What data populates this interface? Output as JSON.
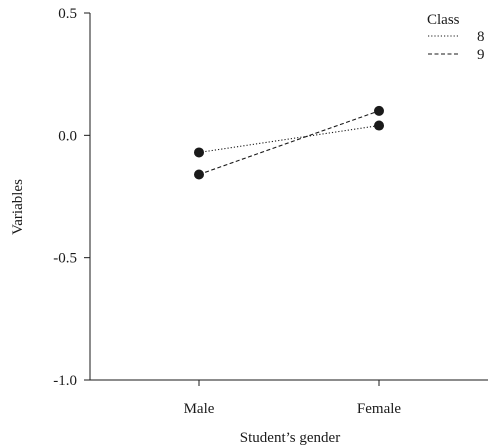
{
  "chart_data": {
    "type": "line",
    "title": "",
    "xlabel": "Student’s gender",
    "ylabel": "Variables",
    "categories": [
      "Male",
      "Female"
    ],
    "ylim": [
      -1.0,
      0.5
    ],
    "yticks": [
      "-1.0",
      "-0.5",
      "0.0",
      "0.5"
    ],
    "grid": false,
    "legend": {
      "title": "Class",
      "position": "top-right"
    },
    "series": [
      {
        "name": "8",
        "values": [
          -0.07,
          0.04
        ],
        "line_style": "dotted"
      },
      {
        "name": "9",
        "values": [
          -0.16,
          0.1
        ],
        "line_style": "dashed"
      }
    ],
    "marker": "filled-circle",
    "color": "#1a1a1a"
  }
}
